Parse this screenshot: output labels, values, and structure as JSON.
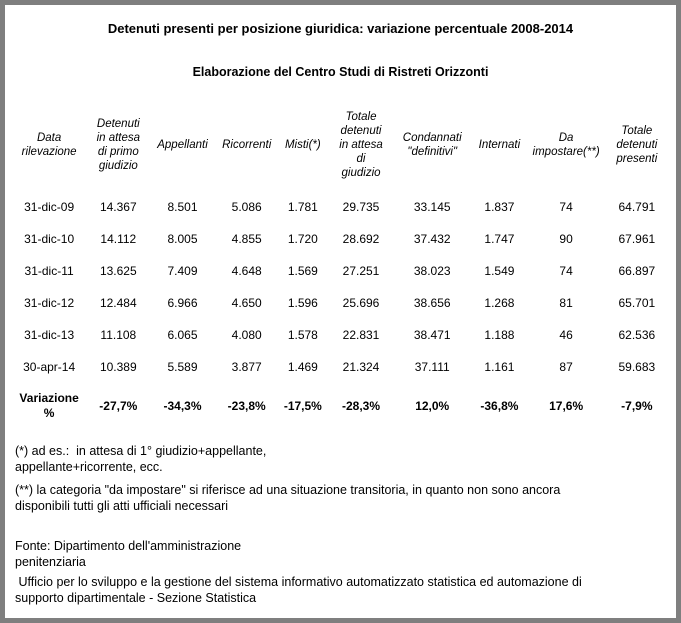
{
  "title": "Detenuti presenti per posizione giuridica: variazione percentuale 2008-2014",
  "subtitle": "Elaborazione del Centro Studi di Ristreti Orizzonti",
  "table": {
    "columns": [
      "Data\nrilevazione",
      "Detenuti\nin attesa\ndi primo\ngiudizio",
      "Appellanti",
      "Ricorrenti",
      "Misti(*)",
      "Totale\ndetenuti\nin attesa\ndi\ngiudizio",
      "Condannati\n\"definitivi\"",
      "Internati",
      "Da\nimpostare(**)",
      "Totale\ndetenuti\npresenti"
    ],
    "rows": [
      {
        "date": "31-dic-09",
        "values": [
          "14.367",
          "8.501",
          "5.086",
          "1.781",
          "29.735",
          "33.145",
          "1.837",
          "74",
          "64.791"
        ]
      },
      {
        "date": "31-dic-10",
        "values": [
          "14.112",
          "8.005",
          "4.855",
          "1.720",
          "28.692",
          "37.432",
          "1.747",
          "90",
          "67.961"
        ]
      },
      {
        "date": "31-dic-11",
        "values": [
          "13.625",
          "7.409",
          "4.648",
          "1.569",
          "27.251",
          "38.023",
          "1.549",
          "74",
          "66.897"
        ]
      },
      {
        "date": "31-dic-12",
        "values": [
          "12.484",
          "6.966",
          "4.650",
          "1.596",
          "25.696",
          "38.656",
          "1.268",
          "81",
          "65.701"
        ]
      },
      {
        "date": "31-dic-13",
        "values": [
          "11.108",
          "6.065",
          "4.080",
          "1.578",
          "22.831",
          "38.471",
          "1.188",
          "46",
          "62.536"
        ]
      },
      {
        "date": "30-apr-14",
        "values": [
          "10.389",
          "5.589",
          "3.877",
          "1.469",
          "21.324",
          "37.111",
          "1.161",
          "87",
          "59.683"
        ]
      }
    ],
    "variation": {
      "label": "Variazione\n%",
      "values": [
        "-27,7%",
        "-34,3%",
        "-23,8%",
        "-17,5%",
        "-28,3%",
        "12,0%",
        "-36,8%",
        "17,6%",
        "-7,9%"
      ]
    }
  },
  "notes": {
    "note1": "(*) ad es.:  in attesa di 1° giudizio+appellante,\nappellante+ricorrente, ecc.",
    "note2": "(**) la categoria \"da impostare\" si riferisce ad una situazione transitoria, in quanto non sono ancora\ndisponibili tutti gli atti ufficiali necessari"
  },
  "source": {
    "line1": "Fonte: Dipartimento dell'amministrazione\npenitenziaria",
    "line2": " Ufficio per lo sviluppo e la gestione del sistema informativo automatizzato statistica ed automazione di\nsupporto dipartimentale - Sezione Statistica"
  }
}
